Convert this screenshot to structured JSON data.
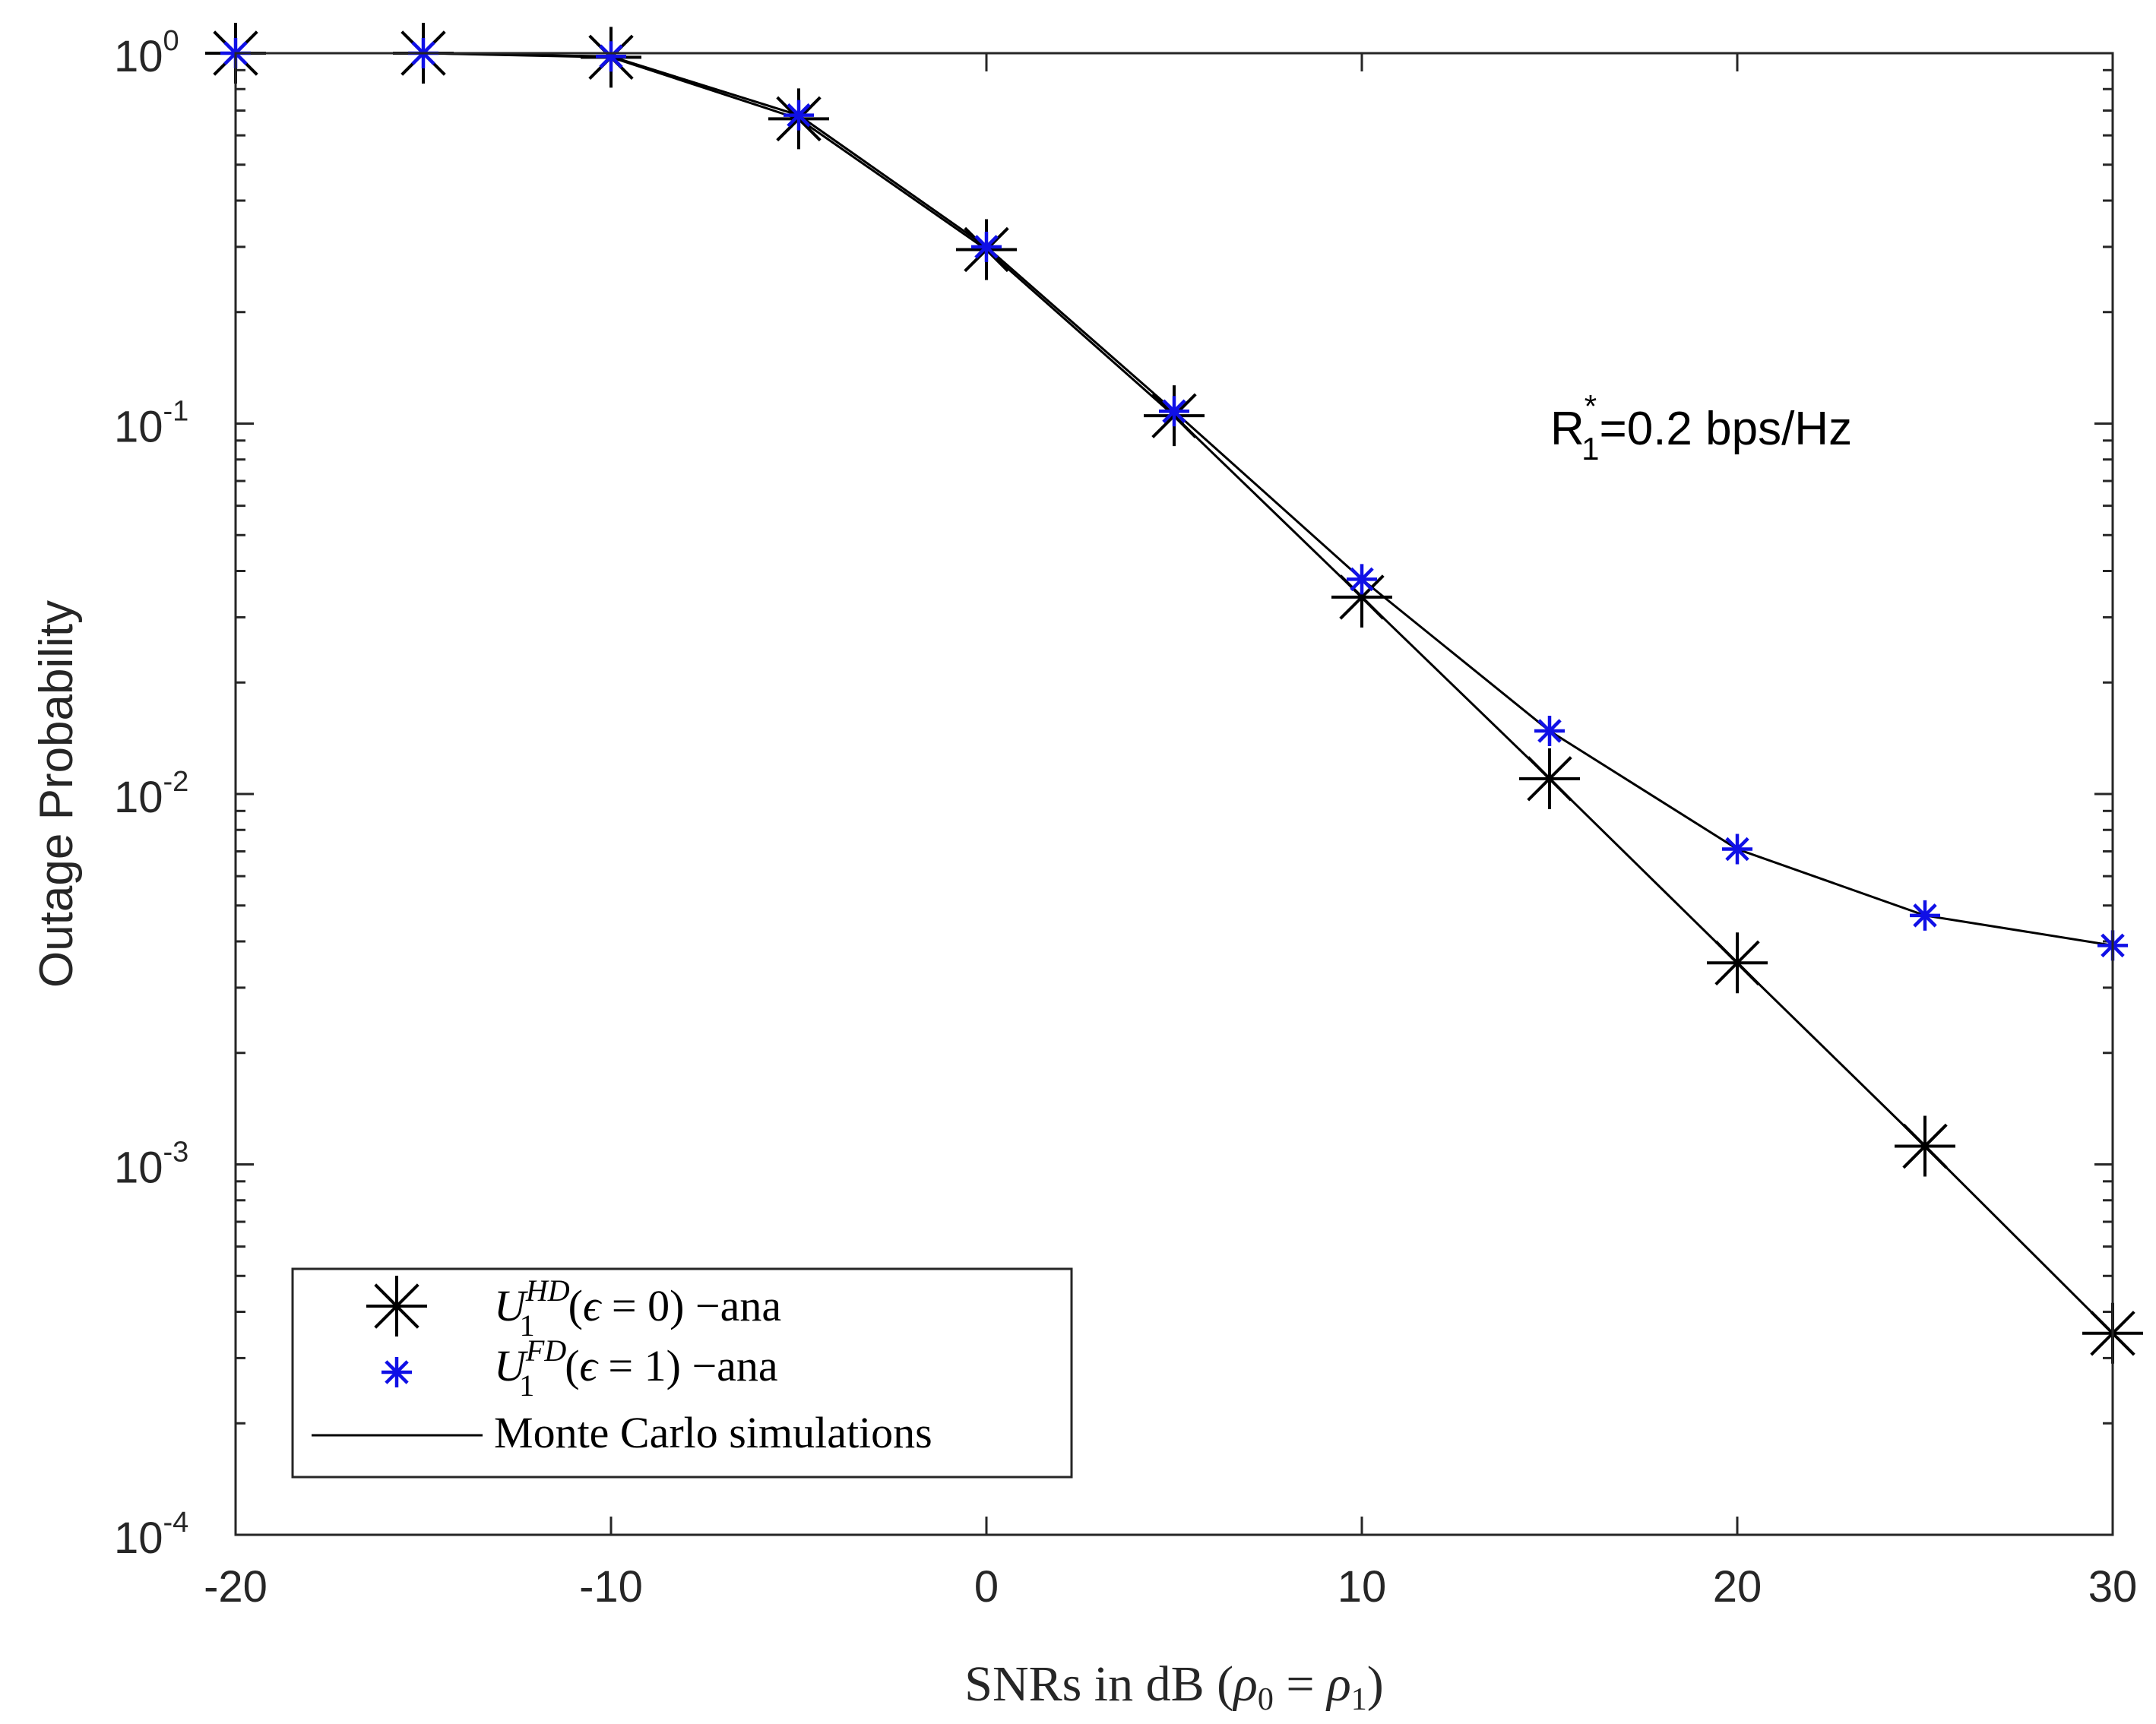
{
  "chart_data": {
    "type": "line",
    "title": "",
    "xlabel": "SNRs in dB (ρ0 = ρ1)",
    "xlabel_parts": {
      "main": "SNRs in dB (",
      "rho": "ρ",
      "sub0": "0",
      "eq": " = ",
      "sub1": "1",
      "close": ")"
    },
    "ylabel": "Outage Probability",
    "yscale": "log",
    "xlim": [
      -20,
      30
    ],
    "ylim": [
      0.0001,
      1
    ],
    "xticks": [
      -20,
      -10,
      0,
      10,
      20,
      30
    ],
    "xtick_labels": [
      "-20",
      "-10",
      "0",
      "10",
      "20",
      "30"
    ],
    "yticks": [
      0.0001,
      0.001,
      0.01,
      0.1,
      1
    ],
    "ytick_labels": [
      {
        "base": "10",
        "exp": "-4"
      },
      {
        "base": "10",
        "exp": "-3"
      },
      {
        "base": "10",
        "exp": "-2"
      },
      {
        "base": "10",
        "exp": "-1"
      },
      {
        "base": "10",
        "exp": "0"
      }
    ],
    "x": [
      -20,
      -15,
      -10,
      -5,
      0,
      5,
      10,
      15,
      20,
      25,
      30
    ],
    "series": [
      {
        "name": "U1HD(ε=0) −ana",
        "color": "#000000",
        "marker": "asterisk-large",
        "values": [
          1.0,
          1.0,
          0.975,
          0.665,
          0.295,
          0.105,
          0.034,
          0.011,
          0.0035,
          0.00112,
          0.00035
        ]
      },
      {
        "name": "U1FD(ε=1) −ana",
        "color": "#1010e6",
        "marker": "asterisk-small",
        "values": [
          1.0,
          1.0,
          0.98,
          0.68,
          0.3,
          0.108,
          0.038,
          0.0148,
          0.0071,
          0.0047,
          0.0039
        ]
      }
    ],
    "simulation_line_color": "#000000",
    "annotation": {
      "base": "R",
      "sup": "*",
      "sub": "1",
      "rest": "=0.2 bps/Hz"
    },
    "legend": {
      "position": "bottom-left",
      "entries": [
        {
          "sym": "U",
          "sup": "HD",
          "sub": "1",
          "rest_a": "(",
          "eps": "ϵ",
          "rest_b": " = 0) −ana"
        },
        {
          "sym": "U",
          "sup": "FD",
          "sub": "1",
          "rest_a": "(",
          "eps": "ϵ",
          "rest_b": " = 1) −ana"
        },
        {
          "label": "Monte Carlo simulations"
        }
      ]
    }
  }
}
